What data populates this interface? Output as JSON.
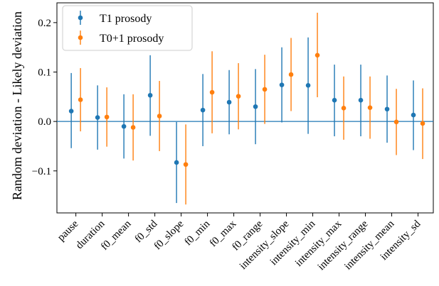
{
  "chart_data": {
    "type": "scatter",
    "ylabel": "Random deviation - Likely deviation",
    "xlabel": "",
    "ylim": [
      -0.185,
      0.24
    ],
    "yticks": [
      {
        "value": 0.2,
        "label": "0.2"
      },
      {
        "value": 0.1,
        "label": "0.1"
      },
      {
        "value": 0.0,
        "label": "0.0"
      },
      {
        "value": -0.1,
        "label": "−0.1"
      }
    ],
    "categories": [
      "pause",
      "duration",
      "f0_mean",
      "f0_std",
      "f0_slope",
      "f0_min",
      "f0_max",
      "f0_range",
      "intensity_slope",
      "intensity_min",
      "intensity_max",
      "intensity_range",
      "intensity_mean",
      "intensity_sd"
    ],
    "reference_line": 0.0,
    "legend_position": "top-left",
    "series": [
      {
        "name": "T1 prosody",
        "color": "#1f77b4",
        "values": [
          0.021,
          0.008,
          -0.01,
          0.053,
          -0.083,
          0.023,
          0.039,
          0.03,
          0.074,
          0.073,
          0.043,
          0.043,
          0.025,
          0.013
        ],
        "lower": [
          -0.054,
          -0.057,
          -0.075,
          -0.029,
          -0.165,
          -0.05,
          -0.026,
          -0.046,
          -0.002,
          -0.025,
          -0.03,
          -0.03,
          -0.043,
          -0.058
        ],
        "upper": [
          0.098,
          0.073,
          0.055,
          0.134,
          -0.001,
          0.096,
          0.104,
          0.106,
          0.15,
          0.17,
          0.115,
          0.115,
          0.093,
          0.083
        ]
      },
      {
        "name": "T0+1 prosody",
        "color": "#ff7f0e",
        "values": [
          0.044,
          0.009,
          -0.012,
          0.011,
          -0.087,
          0.059,
          0.051,
          0.065,
          0.095,
          0.134,
          0.027,
          0.028,
          -0.001,
          -0.004
        ],
        "lower": [
          -0.02,
          -0.051,
          -0.079,
          -0.06,
          -0.168,
          -0.024,
          -0.016,
          -0.005,
          0.021,
          0.049,
          -0.037,
          -0.035,
          -0.068,
          -0.076
        ],
        "upper": [
          0.108,
          0.069,
          0.055,
          0.082,
          -0.006,
          0.142,
          0.118,
          0.135,
          0.169,
          0.22,
          0.091,
          0.091,
          0.066,
          0.067
        ]
      }
    ]
  }
}
